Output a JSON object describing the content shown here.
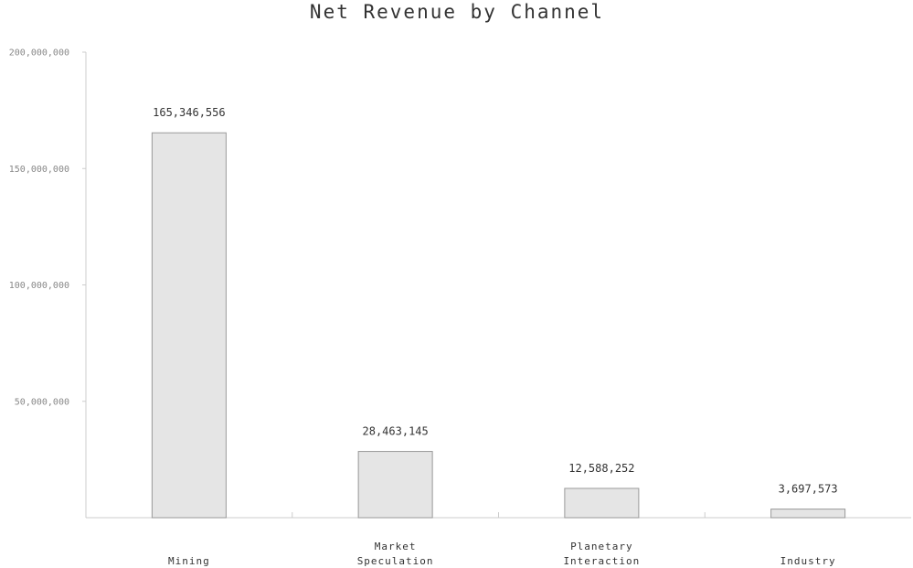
{
  "chart_data": {
    "type": "bar",
    "title": "Net Revenue by Channel",
    "categories": [
      "Mining",
      "Market Speculation",
      "Planetary Interaction",
      "Industry"
    ],
    "category_lines": [
      [
        "Mining"
      ],
      [
        "Market",
        "Speculation"
      ],
      [
        "Planetary",
        "Interaction"
      ],
      [
        "Industry"
      ]
    ],
    "values": [
      165346556,
      28463145,
      12588252,
      3697573
    ],
    "value_labels": [
      "165,346,556",
      "28,463,145",
      "12,588,252",
      "3,697,573"
    ],
    "ylim": [
      0,
      200000000
    ],
    "yticks": [
      50000000,
      100000000,
      150000000,
      200000000
    ],
    "ytick_labels": [
      "50,000,000",
      "100,000,000",
      "150,000,000",
      "200,000,000"
    ],
    "grid": false,
    "colors": {
      "bar_fill": "#e5e5e5",
      "bar_stroke": "#999999",
      "axis": "#cccccc",
      "text": "#333333",
      "tick_text": "#888888"
    }
  }
}
